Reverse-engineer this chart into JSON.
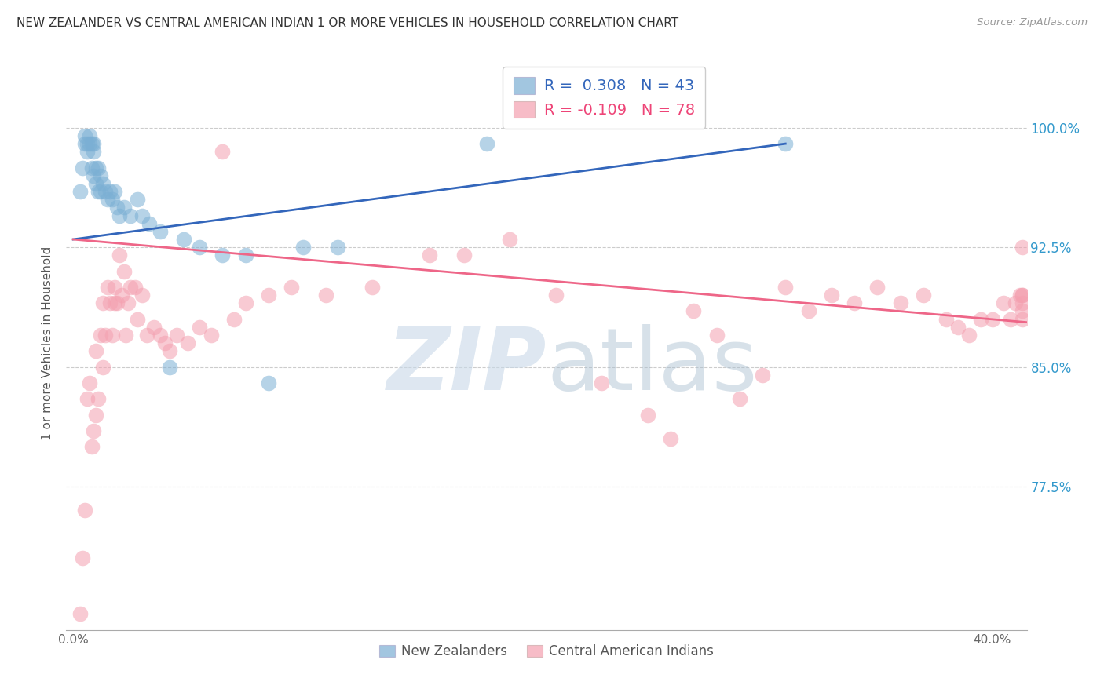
{
  "title": "NEW ZEALANDER VS CENTRAL AMERICAN INDIAN 1 OR MORE VEHICLES IN HOUSEHOLD CORRELATION CHART",
  "source": "Source: ZipAtlas.com",
  "ylabel": "1 or more Vehicles in Household",
  "xlabel_ticks": [
    "0.0%",
    "",
    "",
    "",
    "40.0%"
  ],
  "xlabel_vals": [
    0.0,
    0.1,
    0.2,
    0.3,
    0.4
  ],
  "ylabel_ticks": [
    "77.5%",
    "85.0%",
    "92.5%",
    "100.0%"
  ],
  "ylabel_vals": [
    0.775,
    0.85,
    0.925,
    1.0
  ],
  "xmin": -0.003,
  "xmax": 0.415,
  "ymin": 0.685,
  "ymax": 1.045,
  "legend_blue_R": "0.308",
  "legend_blue_N": "43",
  "legend_pink_R": "-0.109",
  "legend_pink_N": "78",
  "blue_color": "#7BAFD4",
  "pink_color": "#F4A0B0",
  "blue_line_color": "#3366BB",
  "pink_line_color": "#EE6688",
  "blue_line_x0": 0.0,
  "blue_line_x1": 0.31,
  "blue_line_y0": 0.93,
  "blue_line_y1": 0.99,
  "pink_line_x0": 0.0,
  "pink_line_x1": 0.415,
  "pink_line_y0": 0.93,
  "pink_line_y1": 0.878,
  "blue_scatter_x": [
    0.003,
    0.004,
    0.005,
    0.005,
    0.006,
    0.006,
    0.007,
    0.007,
    0.008,
    0.008,
    0.009,
    0.009,
    0.009,
    0.01,
    0.01,
    0.011,
    0.011,
    0.012,
    0.012,
    0.013,
    0.014,
    0.015,
    0.016,
    0.017,
    0.018,
    0.019,
    0.02,
    0.022,
    0.025,
    0.028,
    0.03,
    0.033,
    0.038,
    0.042,
    0.048,
    0.055,
    0.065,
    0.075,
    0.085,
    0.1,
    0.115,
    0.18,
    0.31
  ],
  "blue_scatter_y": [
    0.96,
    0.975,
    0.99,
    0.995,
    0.99,
    0.985,
    0.99,
    0.995,
    0.99,
    0.975,
    0.99,
    0.985,
    0.97,
    0.975,
    0.965,
    0.975,
    0.96,
    0.97,
    0.96,
    0.965,
    0.96,
    0.955,
    0.96,
    0.955,
    0.96,
    0.95,
    0.945,
    0.95,
    0.945,
    0.955,
    0.945,
    0.94,
    0.935,
    0.85,
    0.93,
    0.925,
    0.92,
    0.92,
    0.84,
    0.925,
    0.925,
    0.99,
    0.99
  ],
  "pink_scatter_x": [
    0.003,
    0.004,
    0.005,
    0.006,
    0.007,
    0.008,
    0.009,
    0.01,
    0.01,
    0.011,
    0.012,
    0.013,
    0.013,
    0.014,
    0.015,
    0.016,
    0.017,
    0.018,
    0.018,
    0.019,
    0.02,
    0.021,
    0.022,
    0.023,
    0.024,
    0.025,
    0.027,
    0.028,
    0.03,
    0.032,
    0.035,
    0.038,
    0.04,
    0.042,
    0.045,
    0.05,
    0.055,
    0.06,
    0.065,
    0.07,
    0.075,
    0.085,
    0.095,
    0.11,
    0.13,
    0.155,
    0.17,
    0.19,
    0.21,
    0.23,
    0.25,
    0.26,
    0.27,
    0.28,
    0.29,
    0.3,
    0.31,
    0.32,
    0.33,
    0.34,
    0.35,
    0.36,
    0.37,
    0.38,
    0.385,
    0.39,
    0.395,
    0.4,
    0.405,
    0.408,
    0.41,
    0.412,
    0.413,
    0.413,
    0.413,
    0.413,
    0.413,
    0.413
  ],
  "pink_scatter_y": [
    0.695,
    0.73,
    0.76,
    0.83,
    0.84,
    0.8,
    0.81,
    0.82,
    0.86,
    0.83,
    0.87,
    0.85,
    0.89,
    0.87,
    0.9,
    0.89,
    0.87,
    0.9,
    0.89,
    0.89,
    0.92,
    0.895,
    0.91,
    0.87,
    0.89,
    0.9,
    0.9,
    0.88,
    0.895,
    0.87,
    0.875,
    0.87,
    0.865,
    0.86,
    0.87,
    0.865,
    0.875,
    0.87,
    0.985,
    0.88,
    0.89,
    0.895,
    0.9,
    0.895,
    0.9,
    0.92,
    0.92,
    0.93,
    0.895,
    0.84,
    0.82,
    0.805,
    0.885,
    0.87,
    0.83,
    0.845,
    0.9,
    0.885,
    0.895,
    0.89,
    0.9,
    0.89,
    0.895,
    0.88,
    0.875,
    0.87,
    0.88,
    0.88,
    0.89,
    0.88,
    0.89,
    0.895,
    0.925,
    0.895,
    0.89,
    0.895,
    0.885,
    0.88
  ]
}
